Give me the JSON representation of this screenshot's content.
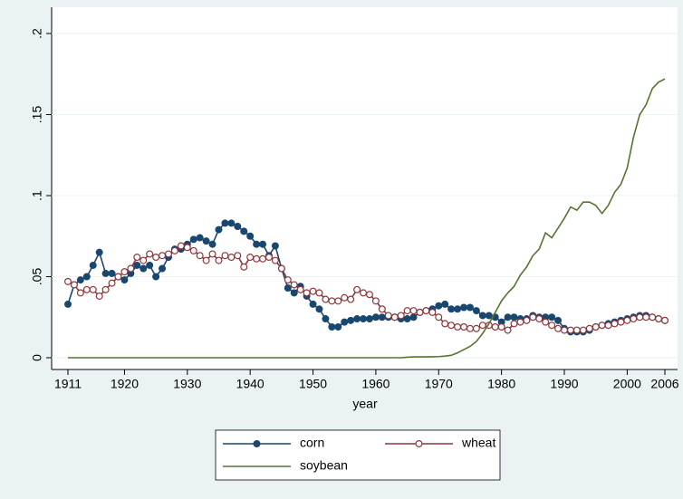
{
  "chart_data": {
    "type": "line",
    "x_label": "year",
    "x": [
      1911,
      1912,
      1913,
      1914,
      1915,
      1916,
      1917,
      1918,
      1919,
      1920,
      1921,
      1922,
      1923,
      1924,
      1925,
      1926,
      1927,
      1928,
      1929,
      1930,
      1931,
      1932,
      1933,
      1934,
      1935,
      1936,
      1937,
      1938,
      1939,
      1940,
      1941,
      1942,
      1943,
      1944,
      1945,
      1946,
      1947,
      1948,
      1949,
      1950,
      1951,
      1952,
      1953,
      1954,
      1955,
      1956,
      1957,
      1958,
      1959,
      1960,
      1961,
      1962,
      1963,
      1964,
      1965,
      1966,
      1967,
      1968,
      1969,
      1970,
      1971,
      1972,
      1973,
      1974,
      1975,
      1976,
      1977,
      1978,
      1979,
      1980,
      1981,
      1982,
      1983,
      1984,
      1985,
      1986,
      1987,
      1988,
      1989,
      1990,
      1991,
      1992,
      1993,
      1994,
      1995,
      1996,
      1997,
      1998,
      1999,
      2000,
      2001,
      2002,
      2003,
      2004,
      2005,
      2006
    ],
    "series": [
      {
        "name": "corn",
        "color": "#1a476f",
        "marker": "filled",
        "values": [
          0.033,
          0.045,
          0.048,
          0.05,
          0.057,
          0.065,
          0.052,
          0.052,
          0.05,
          0.048,
          0.052,
          0.057,
          0.055,
          0.057,
          0.05,
          0.055,
          0.062,
          0.067,
          0.067,
          0.07,
          0.073,
          0.074,
          0.072,
          0.07,
          0.079,
          0.083,
          0.083,
          0.081,
          0.078,
          0.075,
          0.07,
          0.07,
          0.063,
          0.069,
          0.055,
          0.043,
          0.04,
          0.044,
          0.038,
          0.033,
          0.03,
          0.024,
          0.019,
          0.019,
          0.022,
          0.023,
          0.024,
          0.024,
          0.024,
          0.025,
          0.025,
          0.025,
          0.025,
          0.024,
          0.024,
          0.025,
          0.028,
          0.029,
          0.03,
          0.032,
          0.033,
          0.03,
          0.03,
          0.031,
          0.031,
          0.029,
          0.026,
          0.026,
          0.025,
          0.022,
          0.025,
          0.025,
          0.024,
          0.024,
          0.026,
          0.025,
          0.025,
          0.025,
          0.023,
          0.018,
          0.016,
          0.016,
          0.016,
          0.017,
          0.019,
          0.02,
          0.021,
          0.022,
          0.023,
          0.024,
          0.025,
          0.026,
          0.026,
          0.025,
          0.024,
          0.023
        ]
      },
      {
        "name": "wheat",
        "color": "#90353b",
        "marker": "hollow",
        "values": [
          0.047,
          0.045,
          0.04,
          0.042,
          0.042,
          0.038,
          0.042,
          0.046,
          0.05,
          0.053,
          0.055,
          0.062,
          0.06,
          0.064,
          0.062,
          0.063,
          0.064,
          0.066,
          0.069,
          0.068,
          0.066,
          0.063,
          0.06,
          0.064,
          0.06,
          0.063,
          0.062,
          0.063,
          0.056,
          0.062,
          0.061,
          0.061,
          0.062,
          0.06,
          0.055,
          0.048,
          0.045,
          0.042,
          0.04,
          0.041,
          0.04,
          0.036,
          0.035,
          0.035,
          0.037,
          0.036,
          0.042,
          0.04,
          0.039,
          0.035,
          0.03,
          0.026,
          0.025,
          0.026,
          0.029,
          0.029,
          0.028,
          0.029,
          0.028,
          0.025,
          0.021,
          0.02,
          0.019,
          0.019,
          0.018,
          0.018,
          0.02,
          0.02,
          0.019,
          0.019,
          0.017,
          0.021,
          0.022,
          0.023,
          0.025,
          0.024,
          0.022,
          0.02,
          0.018,
          0.017,
          0.017,
          0.017,
          0.017,
          0.018,
          0.019,
          0.02,
          0.02,
          0.021,
          0.022,
          0.023,
          0.024,
          0.025,
          0.025,
          0.025,
          0.024,
          0.023
        ]
      },
      {
        "name": "soybean",
        "color": "#55752f",
        "marker": "none",
        "values": [
          0,
          0,
          0,
          0,
          0,
          0,
          0,
          0,
          0,
          0,
          0,
          0,
          0,
          0,
          0,
          0,
          0,
          0,
          0,
          0,
          0,
          0,
          0,
          0,
          0,
          0,
          0,
          0,
          0,
          0,
          0,
          0,
          0,
          0,
          0,
          0,
          0,
          0,
          0,
          0,
          0,
          0,
          0,
          0,
          0,
          0,
          0,
          0,
          0,
          0,
          0,
          0,
          0,
          0,
          0.0003,
          0.0005,
          0.0005,
          0.0005,
          0.0006,
          0.0007,
          0.001,
          0.0015,
          0.003,
          0.005,
          0.007,
          0.01,
          0.015,
          0.021,
          0.028,
          0.035,
          0.04,
          0.044,
          0.051,
          0.056,
          0.063,
          0.067,
          0.077,
          0.074,
          0.08,
          0.086,
          0.093,
          0.091,
          0.096,
          0.096,
          0.094,
          0.089,
          0.094,
          0.102,
          0.107,
          0.117,
          0.136,
          0.15,
          0.156,
          0.166,
          0.17,
          0.172
        ]
      }
    ],
    "xlim": [
      1911,
      2006
    ],
    "xticks": [
      1911,
      1920,
      1930,
      1940,
      1950,
      1960,
      1970,
      1980,
      1990,
      2000,
      2006
    ],
    "ylim": [
      0,
      0.2
    ],
    "yticks": [
      0,
      {
        "value": 0.05,
        "label": ".05"
      },
      {
        "value": 0.1,
        "label": ".1"
      },
      {
        "value": 0.15,
        "label": ".15"
      },
      {
        "value": 0.2,
        "label": ".2"
      }
    ],
    "grid": true,
    "legend": "bottom"
  }
}
